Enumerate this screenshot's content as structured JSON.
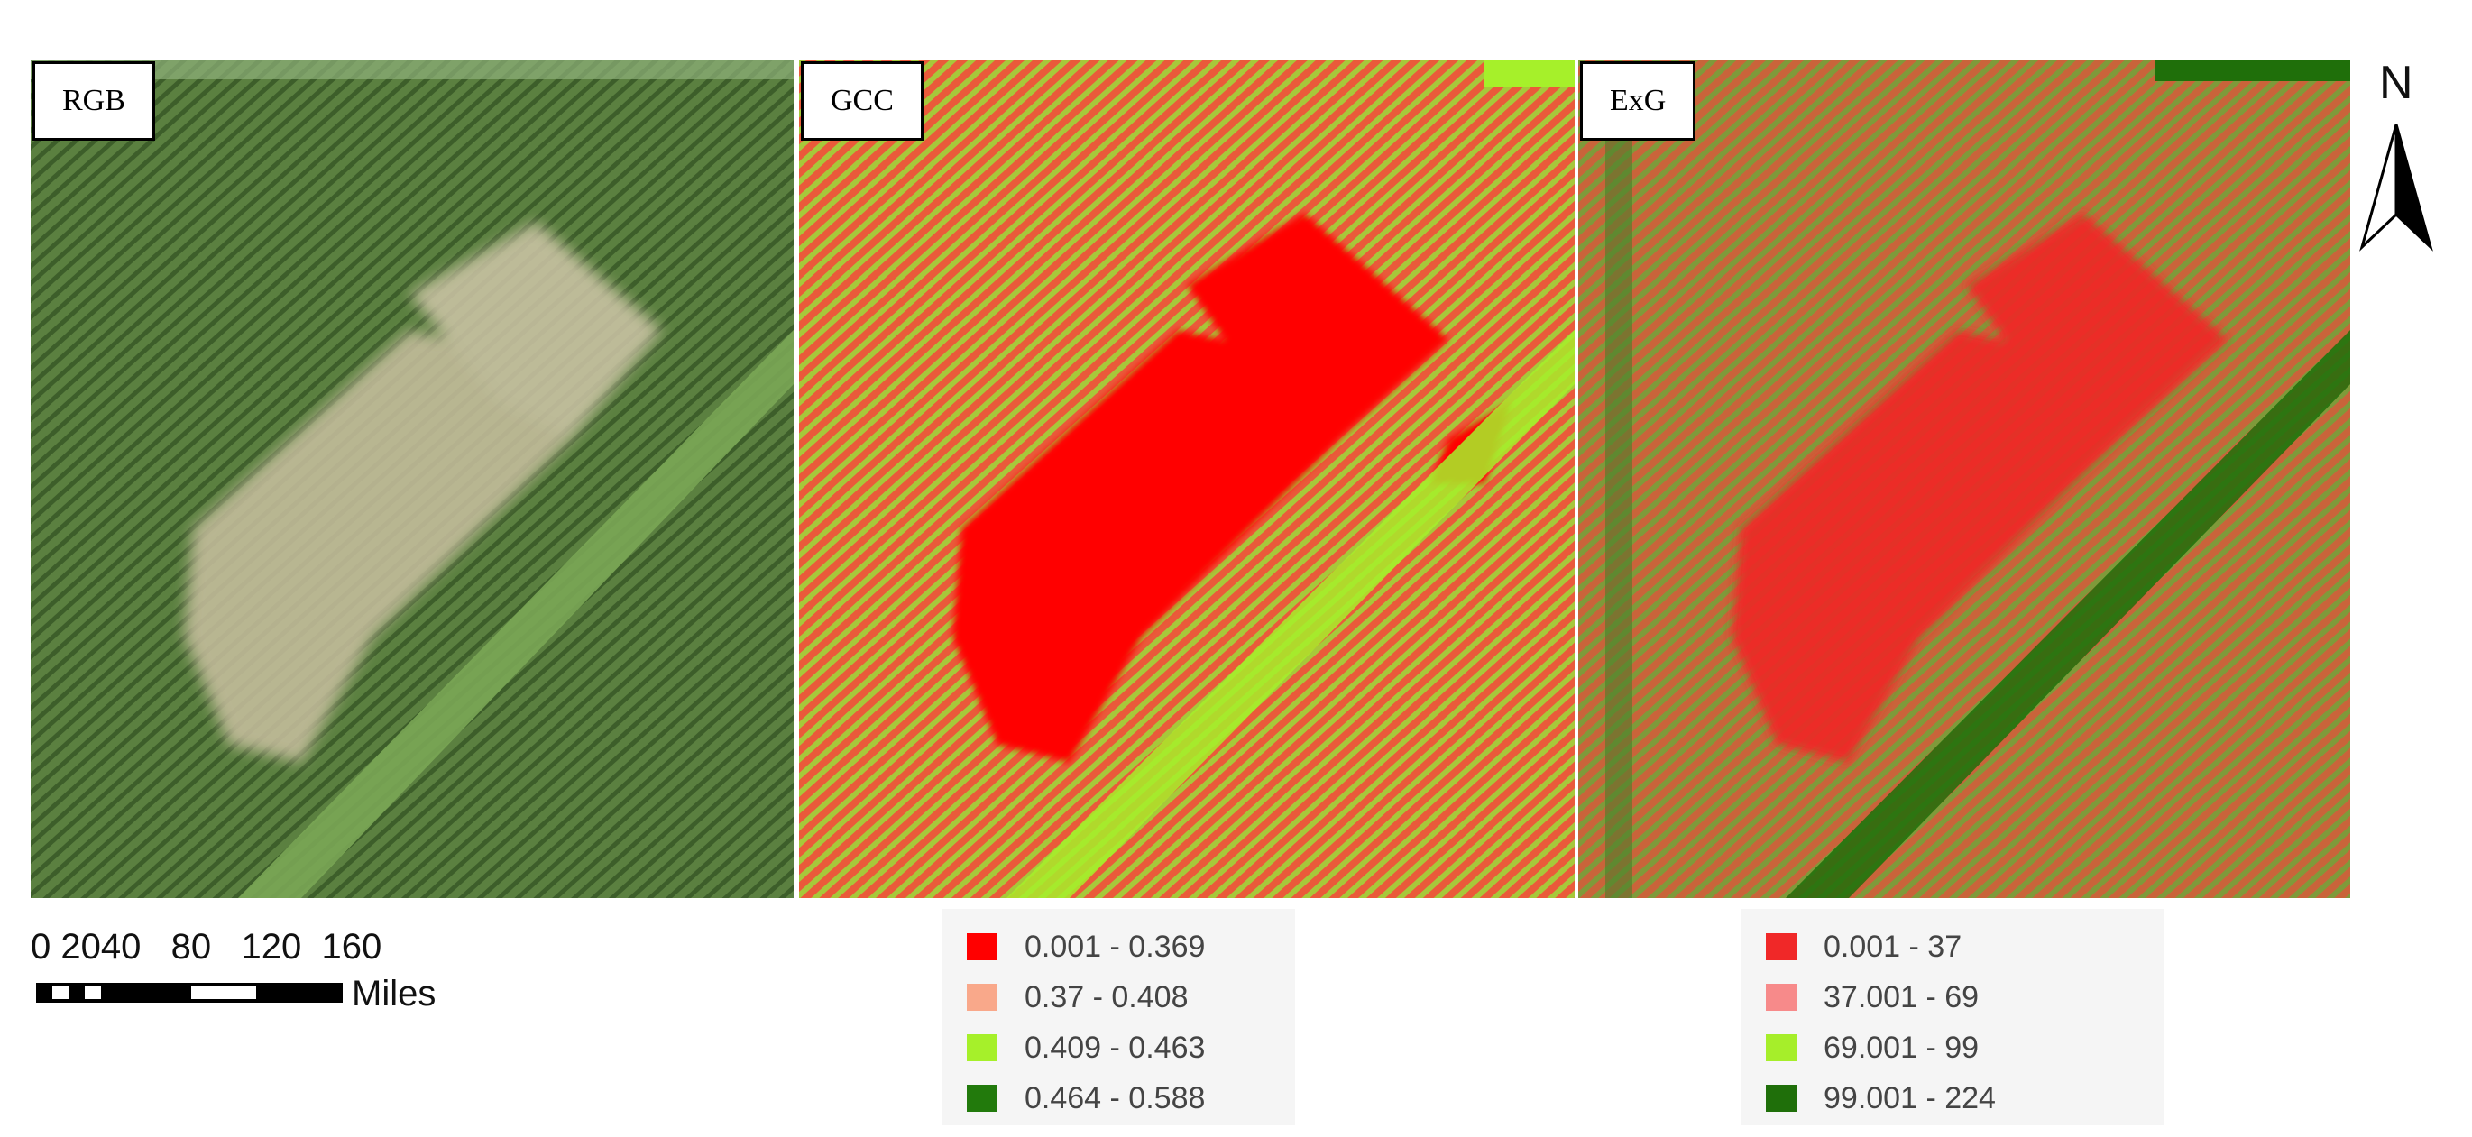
{
  "panels": [
    {
      "label": "RGB"
    },
    {
      "label": "GCC"
    },
    {
      "label": "ExG"
    }
  ],
  "north_arrow": {
    "label": "N"
  },
  "scale_bar": {
    "ticks_text": "0 2040   80   120  160",
    "units": "Miles"
  },
  "legend_gcc": {
    "items": [
      {
        "label": "0.001 - 0.369",
        "color": "#ff0000"
      },
      {
        "label": "0.37 - 0.408",
        "color": "#f9a88a"
      },
      {
        "label": "0.409 - 0.463",
        "color": "#a6f02a"
      },
      {
        "label": "0.464 - 0.588",
        "color": "#227a0c"
      }
    ]
  },
  "legend_exg": {
    "items": [
      {
        "label": "0.001 - 37",
        "color": "#f02828"
      },
      {
        "label": "37.001 - 69",
        "color": "#f78a8a"
      },
      {
        "label": "69.001 - 99",
        "color": "#a6ee2a"
      },
      {
        "label": "99.001 - 224",
        "color": "#1f6f0a"
      }
    ]
  },
  "colors": {
    "rgb_base": "#567a3c",
    "rgb_bare": "#c9c0a0",
    "rgb_road": "#6e9a4a",
    "gcc_base": "#d4a24a",
    "exg_base": "#a9863e"
  }
}
